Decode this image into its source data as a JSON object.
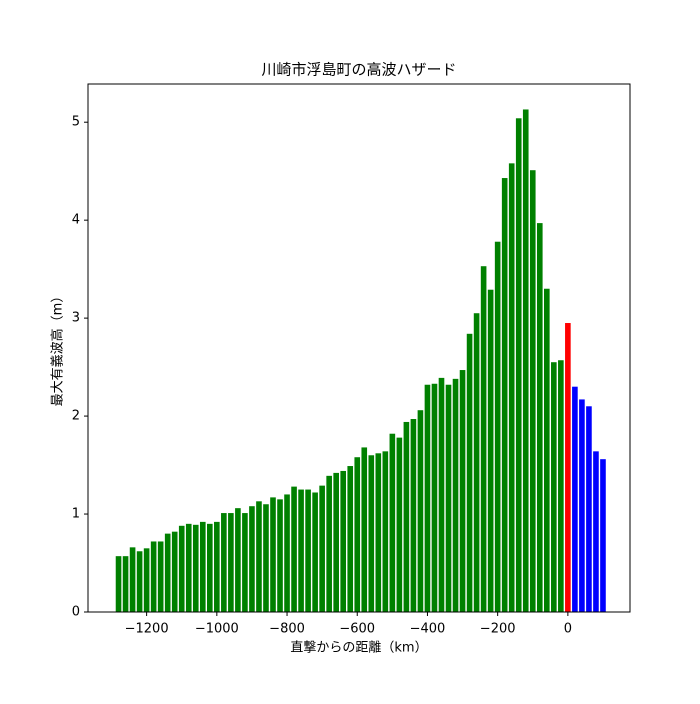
{
  "chart_data": {
    "type": "bar",
    "title": "川崎市浮島町の高波ハザード",
    "xlabel": "直撃からの距離（km）",
    "ylabel": "最大有義波高（m）",
    "bar_width": 16,
    "series": [
      {
        "color": "green",
        "x": [
          -1280,
          -1260,
          -1240,
          -1220,
          -1200,
          -1180,
          -1160,
          -1140,
          -1120,
          -1100,
          -1080,
          -1060,
          -1040,
          -1020,
          -1000,
          -980,
          -960,
          -940,
          -920,
          -900,
          -880,
          -860,
          -840,
          -820,
          -800,
          -780,
          -760,
          -740,
          -720,
          -700,
          -680,
          -660,
          -640,
          -620,
          -600,
          -580,
          -560,
          -540,
          -520,
          -500,
          -480,
          -460,
          -440,
          -420,
          -400,
          -380,
          -360,
          -340,
          -320,
          -300,
          -280,
          -260,
          -240,
          -220,
          -200,
          -180,
          -160,
          -140,
          -120,
          -100,
          -80,
          -60,
          -40,
          -20
        ],
        "values": [
          0.57,
          0.57,
          0.66,
          0.62,
          0.65,
          0.72,
          0.72,
          0.8,
          0.82,
          0.88,
          0.9,
          0.89,
          0.92,
          0.9,
          0.92,
          1.01,
          1.01,
          1.06,
          1.01,
          1.08,
          1.13,
          1.1,
          1.17,
          1.15,
          1.2,
          1.28,
          1.25,
          1.25,
          1.22,
          1.29,
          1.39,
          1.42,
          1.44,
          1.49,
          1.58,
          1.68,
          1.6,
          1.62,
          1.64,
          1.82,
          1.78,
          1.94,
          1.97,
          2.06,
          2.32,
          2.33,
          2.39,
          2.32,
          2.38,
          2.47,
          2.84,
          3.05,
          3.53,
          3.29,
          3.78,
          4.43,
          4.58,
          5.04,
          5.13,
          4.51,
          3.97,
          3.3,
          2.55,
          2.57
        ]
      },
      {
        "color": "red",
        "x": [
          0
        ],
        "values": [
          2.95
        ]
      },
      {
        "color": "blue",
        "x": [
          20,
          40,
          60,
          80,
          100
        ],
        "values": [
          2.3,
          2.17,
          2.1,
          1.64,
          1.56
        ]
      }
    ],
    "xlim": [
      -1367,
      177
    ],
    "xticks": [
      {
        "value": -1200,
        "label": "−1200"
      },
      {
        "value": -1000,
        "label": "−1000"
      },
      {
        "value": -800,
        "label": "−800"
      },
      {
        "value": -600,
        "label": "−600"
      },
      {
        "value": -400,
        "label": "−400"
      },
      {
        "value": -200,
        "label": "−200"
      },
      0
    ],
    "ylim": [
      0,
      5.39
    ],
    "yticks": [
      0,
      1,
      2,
      3,
      4,
      5
    ],
    "grid": false
  }
}
